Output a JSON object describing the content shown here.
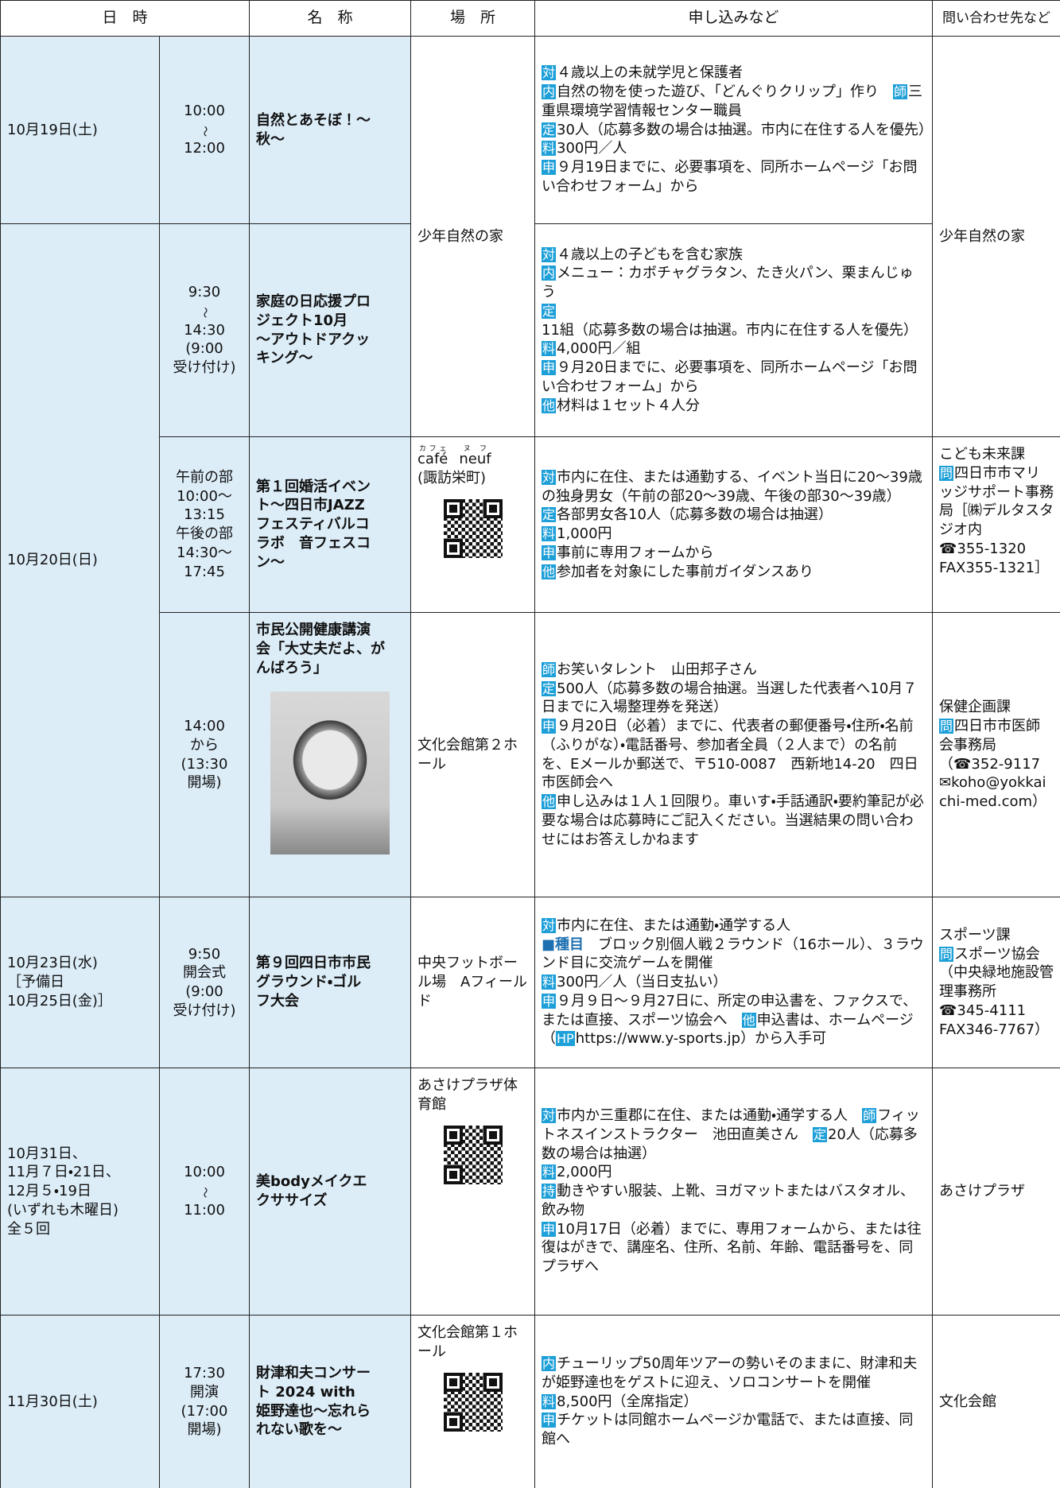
{
  "header": [
    "日　時",
    "名　称",
    "場　所",
    "申し込みなど",
    "問い合わせ先など"
  ],
  "events": [
    {
      "date": [
        "10月19日(土)"
      ],
      "time": [
        "10:00",
        "～",
        "12:00"
      ],
      "name": [
        "自然とあそぼ！～",
        "秋～"
      ],
      "place": [
        "少年自然の家"
      ],
      "apply": [
        [
          {
            "k": "対"
          },
          "４歳以上の未就学児と保護者"
        ],
        [
          {
            "k": "内"
          },
          "自然の物を使った遊び、「どんぐりクリップ」作り　",
          {
            "k": "師"
          },
          "三重県環境学習情報センター職員"
        ],
        [
          {
            "k": "定"
          },
          "30人（応募多数の場合は抽選。市内に在住する人を優先）　",
          {
            "k": "料"
          },
          "300円／人"
        ],
        [
          {
            "k": "申"
          },
          "９月19日までに、必要事項を、同所ホームページ「お問い合わせフォーム」から"
        ]
      ],
      "contact": [
        "少年自然の家"
      ]
    },
    {
      "date": [
        "10月20日(日)"
      ],
      "time": [
        "9:30",
        "～",
        "14:30",
        "(9:00",
        "受け付け)"
      ],
      "name": [
        "家庭の日応援プロ",
        "ジェクト10月",
        "～アウトドアクッ",
        "キング～"
      ],
      "apply": [
        [
          {
            "k": "対"
          },
          "４歳以上の子どもを含む家族"
        ],
        [
          {
            "k": "内"
          },
          "メニュー：カボチャグラタン、たき火パン、栗まんじゅう"
        ],
        [
          {
            "k": "定"
          },
          "11組（応募多数の場合は抽選。市内に在住する人を優先）"
        ],
        [
          {
            "k": "料"
          },
          "4,000円／組"
        ],
        [
          {
            "k": "申"
          },
          "９月20日までに、必要事項を、同所ホームページ「お問い合わせフォーム」から"
        ],
        [
          {
            "k": "他"
          },
          "材料は１セット４人分"
        ]
      ]
    },
    {
      "time": [
        "午前の部",
        "10:00～",
        "13:15",
        "午後の部",
        "14:30～",
        "17:45"
      ],
      "name": [
        "第１回婚活イベン",
        "ト～四日市JAZZ",
        "フェスティバルコ",
        "ラボ　音フェスコ",
        "ン～"
      ],
      "place": [
        [
          {
            "rb": "café",
            "rt": "カフェ"
          },
          {
            "rb": "neuf",
            "rt": "ヌフ"
          }
        ],
        "(諏訪栄町)"
      ],
      "apply": [
        [
          {
            "k": "対"
          },
          "市内に在住、または通勤する、イベント当日に20～39歳の独身男女（午前の部20～39歳、午後の部30～39歳）"
        ],
        [
          {
            "k": "定"
          },
          "各部男女各10人（応募多数の場合は抽選）"
        ],
        [
          {
            "k": "料"
          },
          "1,000円"
        ],
        [
          {
            "k": "申"
          },
          "事前に専用フォームから"
        ],
        [
          {
            "k": "他"
          },
          "参加者を対象にした事前ガイダンスあり"
        ]
      ],
      "contact": [
        "こども未来課",
        [
          {
            "k": "問"
          },
          "四日市市マリッジサポート事務局［㈱デルタスタジオ内"
        ],
        "☎355-1320",
        "FAX355-1321］"
      ]
    },
    {
      "time": [
        "14:00",
        "から",
        "(13:30",
        "開場)"
      ],
      "name": [
        "市民公開健康講演",
        "会「大丈夫だよ、が",
        "んばろう」"
      ],
      "place": [
        "文化会館第２ホール"
      ],
      "apply": [
        [
          {
            "k": "師"
          },
          "お笑いタレント　山田邦子さん"
        ],
        [
          {
            "k": "定"
          },
          "500人（応募多数の場合抽選。当選した代表者へ10月７日までに入場整理券を発送）"
        ],
        [
          {
            "k": "申"
          },
          "９月20日（必着）までに、代表者の郵便番号・住所・名前（ふりがな）・電話番号、参加者全員（２人まで）の名前を、Eメールか郵送で、〒510-0087　西新地14-20　四日市医師会へ"
        ],
        [
          {
            "k": "他"
          },
          "申し込みは１人１回限り。車いす・手話通訳・要約筆記が必要な場合は応募時にご記入ください。当選結果の問い合わせにはお答えしかねます"
        ]
      ],
      "contact": [
        "保健企画課",
        [
          {
            "k": "問"
          },
          "四日市市医師会事務局"
        ],
        "（☎352-9117",
        "✉koho@yokkaichi-med.com）"
      ]
    },
    {
      "date": [
        "10月23日(水)",
        "［予備日",
        "10月25日(金)］"
      ],
      "time": [
        "9:50",
        "開会式",
        "(9:00",
        "受け付け)"
      ],
      "name": [
        "第９回四日市市民",
        "グラウンド・ゴル",
        "フ大会"
      ],
      "place": [
        "中央フットボール場　Aフィールド"
      ],
      "apply": [
        [
          {
            "k": "対"
          },
          "市内に在住、または通勤・通学する人"
        ],
        [
          {
            "c": "■種目"
          },
          "　ブロック別個人戦２ラウンド（16ホール）、３ラウンド目に交流ゲームを開催"
        ],
        [
          {
            "k": "料"
          },
          "300円／人（当日支払い）"
        ],
        [
          {
            "k": "申"
          },
          "９月９日～９月27日に、所定の申込書を、ファクスで、または直接、スポーツ協会へ　",
          {
            "k": "他"
          },
          "申込書は、ホームページ（",
          {
            "k": "HP"
          },
          "https://www.y-sports.jp）から入手可"
        ]
      ],
      "contact": [
        "スポーツ課",
        [
          {
            "k": "問"
          },
          "スポーツ協会（中央緑地施設管理事務所"
        ],
        "☎345-4111",
        "FAX346-7767）"
      ]
    },
    {
      "date": [
        "10月31日、",
        "11月７日・21日、",
        "12月５・19日",
        "(いずれも木曜日)",
        "全５回"
      ],
      "time": [
        "10:00",
        "～",
        "11:00"
      ],
      "name": [
        "美bodyメイクエ",
        "クササイズ"
      ],
      "place": [
        "あさけプラザ体育館"
      ],
      "apply": [
        [
          {
            "k": "対"
          },
          "市内か三重郡に在住、または通勤・通学する人　",
          {
            "k": "師"
          },
          "フィットネスインストラクター　池田直美さん　",
          {
            "k": "定"
          },
          "20人（応募多数の場合は抽選）"
        ],
        [
          {
            "k": "料"
          },
          "2,000円"
        ],
        [
          {
            "k": "持"
          },
          "動きやすい服装、上靴、ヨガマットまたはバスタオル、飲み物"
        ],
        [
          {
            "k": "申"
          },
          "10月17日（必着）までに、専用フォームから、または往復はがきで、講座名、住所、名前、年齢、電話番号を、同プラザへ"
        ]
      ],
      "contact": [
        "あさけプラザ"
      ]
    },
    {
      "date": [
        "11月30日(土)"
      ],
      "time": [
        "17:30",
        "開演",
        "(17:00",
        "開場)"
      ],
      "name": [
        "財津和夫コンサー",
        "ト 2024 with",
        "姫野達也～忘れら",
        "れない歌を～"
      ],
      "place": [
        "文化会館第１ホール"
      ],
      "apply": [
        [
          {
            "k": "内"
          },
          "チューリップ50周年ツアーの勢いそのままに、財津和夫が姫野達也をゲストに迎え、ソロコンサートを開催"
        ],
        [
          {
            "k": "料"
          },
          "8,500円（全席指定）"
        ],
        [
          {
            "k": "申"
          },
          "チケットは同館ホームページか電話で、または直接、同館へ"
        ]
      ],
      "contact": [
        "文化会館"
      ]
    }
  ]
}
